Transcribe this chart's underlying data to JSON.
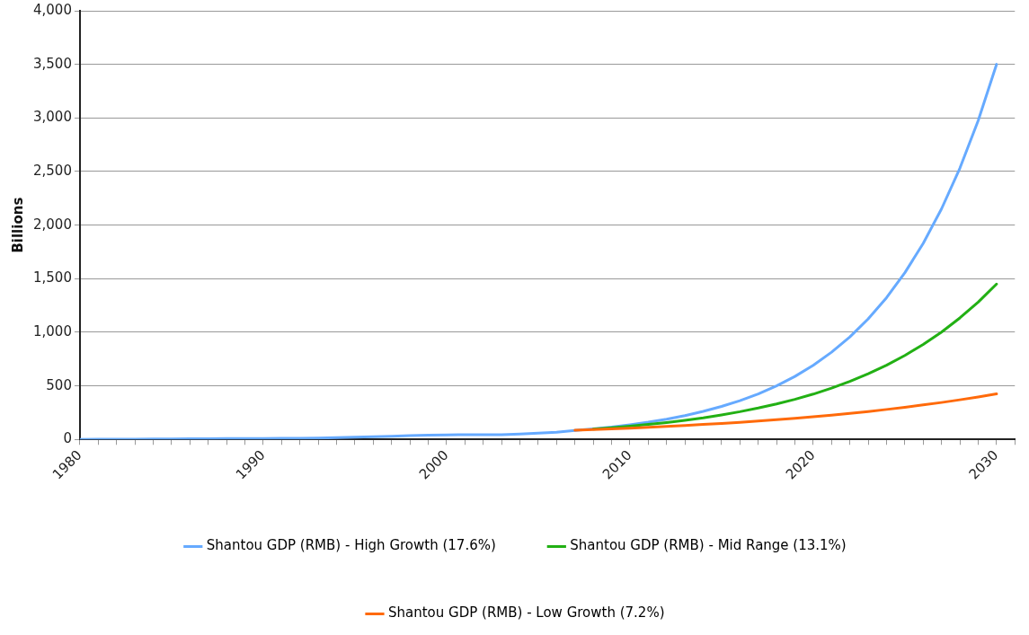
{
  "chart_data": {
    "type": "line",
    "ylabel": "Billions",
    "x": [
      1980,
      1981,
      1982,
      1983,
      1984,
      1985,
      1986,
      1987,
      1988,
      1989,
      1990,
      1991,
      1992,
      1993,
      1994,
      1995,
      1996,
      1997,
      1998,
      1999,
      2000,
      2001,
      2002,
      2003,
      2004,
      2005,
      2006,
      2007,
      2008,
      2009,
      2010,
      2011,
      2012,
      2013,
      2014,
      2015,
      2016,
      2017,
      2018,
      2019,
      2020,
      2021,
      2022,
      2023,
      2024,
      2025,
      2026,
      2027,
      2028,
      2029,
      2030
    ],
    "series": [
      {
        "name": "Shantou GDP (RMB) - High Growth (17.6%)",
        "color": "#66aaff",
        "values": [
          1,
          2,
          2,
          3,
          4,
          5,
          6,
          6,
          8,
          9,
          9,
          10,
          11,
          13,
          17,
          22,
          26,
          29,
          35,
          40,
          43,
          45,
          45,
          45,
          50,
          58,
          68,
          84,
          99,
          116,
          137,
          161,
          189,
          222,
          262,
          308,
          362,
          425,
          500,
          588,
          692,
          814,
          957,
          1125,
          1323,
          1556,
          1830,
          2152,
          2531,
          2976,
          3500
        ]
      },
      {
        "name": "Shantou GDP (RMB) - Mid Range (13.1%)",
        "color": "#22b014",
        "values": [
          null,
          null,
          null,
          null,
          null,
          null,
          null,
          null,
          null,
          null,
          null,
          null,
          null,
          null,
          null,
          null,
          null,
          null,
          null,
          null,
          null,
          null,
          null,
          null,
          null,
          null,
          null,
          null,
          97,
          109,
          124,
          140,
          158,
          179,
          202,
          229,
          259,
          293,
          331,
          374,
          423,
          479,
          542,
          613,
          693,
          784,
          886,
          1002,
          1134,
          1282,
          1450
        ]
      },
      {
        "name": "Shantou GDP (RMB) - Low Growth (7.2%)",
        "color": "#ff6a0a",
        "values": [
          null,
          null,
          null,
          null,
          null,
          null,
          null,
          null,
          null,
          null,
          null,
          null,
          null,
          null,
          null,
          null,
          null,
          null,
          null,
          null,
          null,
          null,
          null,
          null,
          null,
          null,
          null,
          86,
          92,
          99,
          106,
          113,
          121,
          130,
          140,
          150,
          160,
          172,
          184,
          198,
          212,
          227,
          244,
          261,
          280,
          300,
          322,
          345,
          370,
          396,
          425
        ]
      }
    ],
    "xlim": [
      1980,
      2031
    ],
    "xticks": [
      1980,
      {
        "value": 1981,
        "label": null
      },
      {
        "value": 1982,
        "label": null
      },
      {
        "value": 1983,
        "label": null
      },
      {
        "value": 1984,
        "label": null
      },
      {
        "value": 1985,
        "label": null
      },
      {
        "value": 1986,
        "label": null
      },
      {
        "value": 1987,
        "label": null
      },
      {
        "value": 1988,
        "label": null
      },
      {
        "value": 1989,
        "label": null
      },
      1990,
      {
        "value": 1991,
        "label": null
      },
      {
        "value": 1992,
        "label": null
      },
      {
        "value": 1993,
        "label": null
      },
      {
        "value": 1994,
        "label": null
      },
      {
        "value": 1995,
        "label": null
      },
      {
        "value": 1996,
        "label": null
      },
      {
        "value": 1997,
        "label": null
      },
      {
        "value": 1998,
        "label": null
      },
      {
        "value": 1999,
        "label": null
      },
      2000,
      {
        "value": 2001,
        "label": null
      },
      {
        "value": 2002,
        "label": null
      },
      {
        "value": 2003,
        "label": null
      },
      {
        "value": 2004,
        "label": null
      },
      {
        "value": 2005,
        "label": null
      },
      {
        "value": 2006,
        "label": null
      },
      {
        "value": 2007,
        "label": null
      },
      {
        "value": 2008,
        "label": null
      },
      {
        "value": 2009,
        "label": null
      },
      2010,
      {
        "value": 2011,
        "label": null
      },
      {
        "value": 2012,
        "label": null
      },
      {
        "value": 2013,
        "label": null
      },
      {
        "value": 2014,
        "label": null
      },
      {
        "value": 2015,
        "label": null
      },
      {
        "value": 2016,
        "label": null
      },
      {
        "value": 2017,
        "label": null
      },
      {
        "value": 2018,
        "label": null
      },
      {
        "value": 2019,
        "label": null
      },
      2020,
      {
        "value": 2021,
        "label": null
      },
      {
        "value": 2022,
        "label": null
      },
      {
        "value": 2023,
        "label": null
      },
      {
        "value": 2024,
        "label": null
      },
      {
        "value": 2025,
        "label": null
      },
      {
        "value": 2026,
        "label": null
      },
      {
        "value": 2027,
        "label": null
      },
      {
        "value": 2028,
        "label": null
      },
      {
        "value": 2029,
        "label": null
      },
      2030,
      {
        "value": 2031,
        "label": null
      }
    ],
    "ylim": [
      0,
      4000
    ],
    "yticks": [
      0,
      500,
      {
        "value": 1000,
        "label": "1,000"
      },
      {
        "value": 1500,
        "label": "1,500"
      },
      {
        "value": 2000,
        "label": "2,000"
      },
      {
        "value": 2500,
        "label": "2,500"
      },
      {
        "value": 3000,
        "label": "3,000"
      },
      {
        "value": 3500,
        "label": "3,500"
      },
      {
        "value": 4000,
        "label": "4,000"
      }
    ],
    "grid": "y",
    "legend": "bottom",
    "marker": "none",
    "line_style": "solid"
  }
}
